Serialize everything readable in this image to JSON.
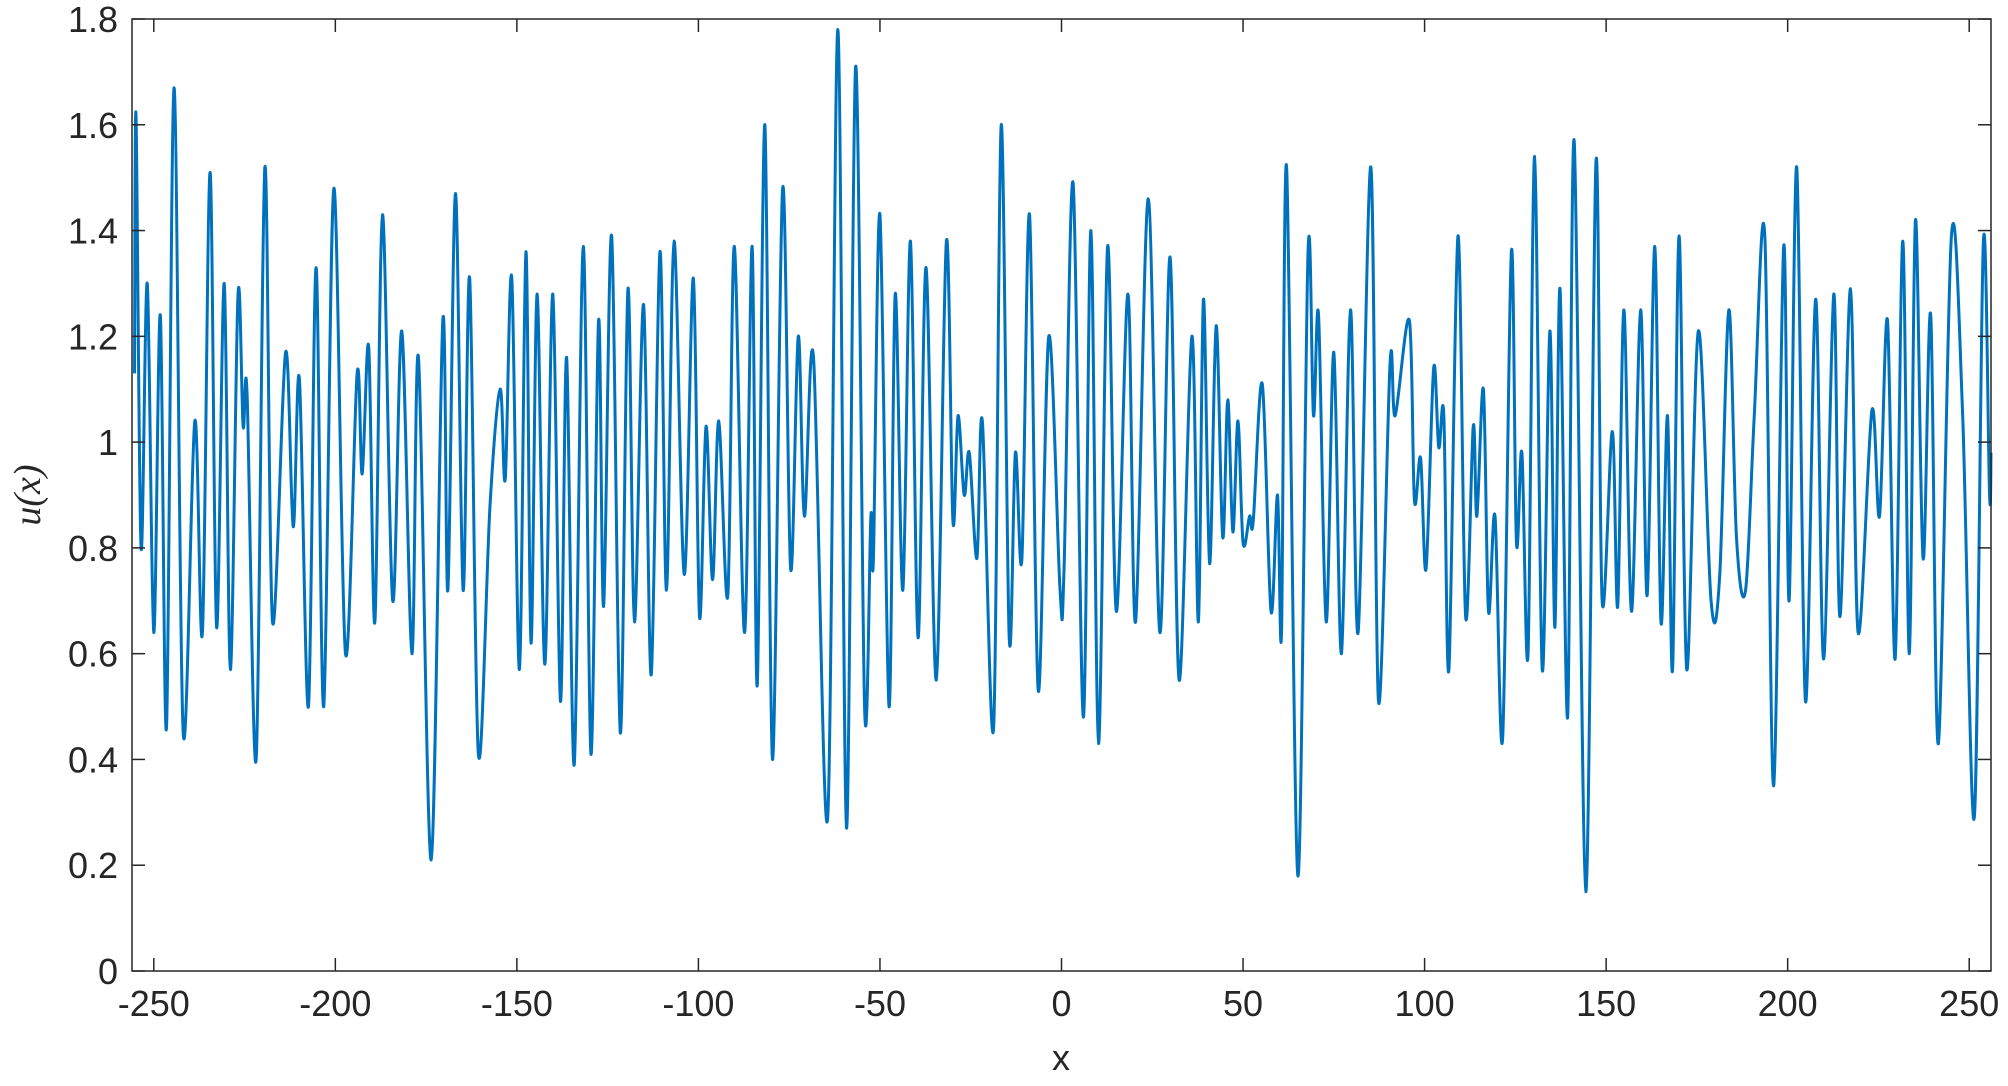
{
  "chart_data": {
    "type": "line",
    "x_label": "x",
    "y_label": "u(x)",
    "xlim": [
      -256,
      256
    ],
    "ylim": [
      0,
      1.8
    ],
    "xticks": [
      -250,
      -200,
      -150,
      -100,
      -50,
      0,
      50,
      100,
      150,
      200,
      250
    ],
    "yticks": [
      0,
      0.2,
      0.4,
      0.6,
      0.8,
      1,
      1.2,
      1.4,
      1.6,
      1.8
    ],
    "grid": false,
    "series": [
      {
        "color": "#0072bd",
        "x": [
          -255.3,
          -254.9,
          -253.5,
          -251.8,
          -250,
          -248.2,
          -246.5,
          -244.4,
          -241.9,
          -238.7,
          -236.6,
          -234.5,
          -232.7,
          -230.6,
          -228.9,
          -226.8,
          -225.4,
          -224.3,
          -221.8,
          -219.4,
          -217.3,
          -213.7,
          -211.6,
          -209.9,
          -207.4,
          -205.3,
          -203.2,
          -200.4,
          -197.2,
          -194.0,
          -192.6,
          -190.8,
          -189.1,
          -187.0,
          -184.2,
          -181.7,
          -178.9,
          -177.1,
          -173.6,
          -170.4,
          -169.0,
          -166.9,
          -164.8,
          -163.0,
          -160.6,
          -157.4,
          -154.6,
          -153.2,
          -151.4,
          -149.3,
          -147.5,
          -146.1,
          -144.4,
          -142.3,
          -140.1,
          -138.0,
          -136.3,
          -134.2,
          -131.7,
          -129.6,
          -127.5,
          -126.1,
          -123.9,
          -121.5,
          -119.4,
          -117.6,
          -115.1,
          -113.0,
          -110.6,
          -108.8,
          -106.7,
          -103.9,
          -101.4,
          -99.7,
          -97.9,
          -96.1,
          -94.4,
          -91.9,
          -90.1,
          -87.3,
          -85.2,
          -83.8,
          -81.7,
          -79.6,
          -76.8,
          -74.6,
          -72.5,
          -70.8,
          -68.3,
          -64.4,
          -61.6,
          -59.2,
          -56.7,
          -54.2,
          -52.5,
          -51.8,
          -50.0,
          -47.5,
          -45.8,
          -43.7,
          -41.6,
          -39.5,
          -37.3,
          -34.5,
          -31.7,
          -29.9,
          -28.5,
          -26.8,
          -25.4,
          -23.3,
          -21.8,
          -18.7,
          -16.6,
          -14.4,
          -12.7,
          -10.9,
          -8.8,
          -6.4,
          -3.5,
          -0.4,
          0.7,
          3.2,
          6.0,
          8.1,
          10.2,
          12.7,
          15.1,
          18.3,
          20.4,
          23.9,
          27.1,
          29.9,
          32.4,
          35.9,
          37.7,
          39.1,
          40.8,
          42.6,
          44.4,
          45.8,
          47.2,
          48.6,
          50.0,
          51.8,
          52.8,
          55.3,
          57.7,
          59.5,
          60.6,
          62.0,
          65.1,
          67.9,
          69.4,
          70.8,
          72.9,
          75.0,
          77.1,
          79.6,
          81.7,
          85.2,
          87.3,
          90.5,
          91.9,
          95.8,
          97.2,
          98.9,
          100.4,
          102.5,
          103.9,
          105.3,
          106.7,
          109.2,
          111.3,
          113.4,
          114.4,
          116.2,
          117.6,
          119.4,
          121.5,
          123.9,
          125.3,
          126.8,
          128.5,
          130.3,
          132.4,
          134.5,
          135.9,
          137.3,
          139.4,
          141.2,
          144.4,
          147.2,
          148.9,
          151.7,
          153.2,
          154.9,
          157.0,
          159.5,
          161.3,
          163.4,
          165.1,
          166.9,
          168.3,
          170.1,
          172.2,
          175.4,
          178.9,
          181.3,
          183.8,
          185.9,
          188.4,
          190.8,
          193.7,
          196.1,
          198.9,
          200.4,
          202.5,
          204.9,
          207.7,
          209.9,
          212.7,
          214.4,
          217.3,
          219.4,
          223.2,
          225.3,
          227.5,
          229.6,
          231.7,
          233.5,
          235.2,
          237.3,
          239.4,
          241.5,
          245.1,
          248.2,
          251.4,
          253.9,
          255.6,
          256.0
        ],
        "values": [
          1.13,
          1.62,
          0.8,
          1.3,
          0.64,
          1.24,
          0.46,
          1.67,
          0.45,
          1.04,
          0.64,
          1.51,
          0.65,
          1.3,
          0.57,
          1.28,
          1.03,
          1.09,
          0.4,
          1.52,
          0.66,
          1.17,
          0.84,
          1.12,
          0.5,
          1.33,
          0.5,
          1.48,
          0.6,
          1.13,
          0.94,
          1.18,
          0.66,
          1.43,
          0.7,
          1.21,
          0.6,
          1.16,
          0.21,
          1.23,
          0.72,
          1.47,
          0.72,
          1.31,
          0.41,
          0.88,
          1.1,
          0.93,
          1.31,
          0.57,
          1.36,
          0.62,
          1.28,
          0.58,
          1.28,
          0.51,
          1.16,
          0.39,
          1.37,
          0.41,
          1.23,
          0.69,
          1.39,
          0.45,
          1.29,
          0.66,
          1.26,
          0.56,
          1.36,
          0.72,
          1.38,
          0.75,
          1.31,
          0.67,
          1.03,
          0.74,
          1.04,
          0.71,
          1.37,
          0.64,
          1.37,
          0.54,
          1.6,
          0.4,
          1.48,
          0.76,
          1.2,
          0.86,
          1.16,
          0.29,
          1.78,
          0.27,
          1.71,
          0.49,
          0.86,
          0.78,
          1.43,
          0.5,
          1.28,
          0.72,
          1.38,
          0.63,
          1.33,
          0.55,
          1.38,
          0.85,
          1.05,
          0.9,
          0.98,
          0.78,
          1.04,
          0.46,
          1.6,
          0.63,
          0.98,
          0.78,
          1.43,
          0.53,
          1.2,
          0.72,
          0.76,
          1.49,
          0.48,
          1.4,
          0.43,
          1.37,
          0.68,
          1.28,
          0.66,
          1.46,
          0.64,
          1.35,
          0.55,
          1.2,
          0.66,
          1.27,
          0.77,
          1.22,
          0.82,
          1.08,
          0.83,
          1.04,
          0.81,
          0.86,
          0.85,
          1.11,
          0.68,
          0.9,
          0.64,
          1.52,
          0.18,
          1.36,
          1.05,
          1.24,
          0.66,
          1.17,
          0.6,
          1.25,
          0.64,
          1.52,
          0.51,
          1.15,
          1.05,
          1.23,
          0.89,
          0.97,
          0.76,
          1.14,
          0.99,
          1.05,
          0.57,
          1.39,
          0.67,
          1.03,
          0.86,
          1.1,
          0.68,
          0.86,
          0.44,
          1.36,
          0.81,
          0.98,
          0.6,
          1.54,
          0.57,
          1.21,
          0.65,
          1.29,
          0.48,
          1.57,
          0.15,
          1.53,
          0.7,
          1.02,
          0.69,
          1.25,
          0.68,
          1.25,
          0.71,
          1.37,
          0.66,
          1.05,
          0.57,
          1.39,
          0.57,
          1.21,
          0.7,
          0.75,
          1.25,
          0.82,
          0.72,
          1.05,
          1.39,
          0.35,
          1.37,
          0.7,
          1.52,
          0.51,
          1.27,
          0.59,
          1.28,
          0.67,
          1.29,
          0.64,
          1.06,
          0.86,
          1.23,
          0.59,
          1.38,
          0.6,
          1.42,
          0.78,
          1.24,
          0.43,
          1.39,
          1.05,
          0.29,
          1.38,
          0.9,
          0.98
        ]
      }
    ]
  }
}
